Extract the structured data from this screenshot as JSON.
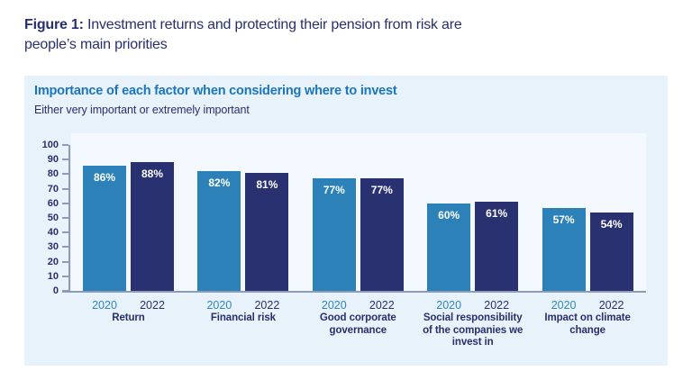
{
  "figure": {
    "label": "Figure 1:",
    "title": "Investment returns and protecting their pension from risk are\npeople’s main priorities"
  },
  "chart_data": {
    "type": "bar",
    "title": "Importance of each factor when considering where to invest",
    "subtitle": "Either very important or extremely important",
    "categories": [
      "Return",
      "Financial risk",
      "Good corporate governance",
      "Social responsibility of the companies we invest in",
      "Impact on climate change"
    ],
    "category_display": [
      "Return",
      "Financial risk",
      "Good corporate\ngovernance",
      "Social responsibility\nof the companies we\ninvest in",
      "Impact on climate\nchange"
    ],
    "series": [
      {
        "name": "2020",
        "values": [
          86,
          82,
          77,
          60,
          57
        ],
        "color": "#2C82B8"
      },
      {
        "name": "2022",
        "values": [
          88,
          81,
          77,
          61,
          54
        ],
        "color": "#2A3170"
      }
    ],
    "value_suffix": "%",
    "xlabel": "",
    "ylabel": "",
    "ylim": [
      0,
      100
    ],
    "yticks": [
      0,
      10,
      20,
      30,
      40,
      50,
      60,
      70,
      80,
      90,
      100
    ],
    "grid": false,
    "legend_position": "none"
  },
  "colors": {
    "navy": "#27306B",
    "title_blue": "#1B75BC",
    "year_2020": "#2D86C0",
    "bar_label": "#FFFFFF",
    "panel_bg": "#E8F2FB",
    "plot_bg": "#F3F9FE",
    "axis": "#8C9BB8"
  }
}
